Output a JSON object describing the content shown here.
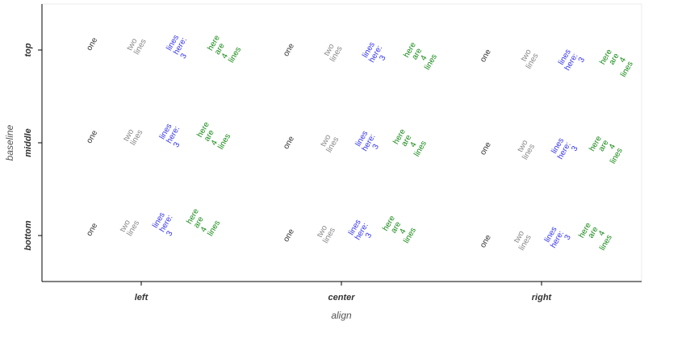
{
  "chart_data": {
    "type": "text-grid",
    "xlabel": "align",
    "ylabel": "baseline",
    "x_categories": [
      "left",
      "center",
      "right"
    ],
    "y_categories": [
      "top",
      "middle",
      "bottom"
    ],
    "text_rotation_deg": -60,
    "grid": false,
    "groups": [
      {
        "name": "one",
        "color": "#333333",
        "lines": [
          "one"
        ]
      },
      {
        "name": "two",
        "color": "#888888",
        "lines": [
          "two",
          "lines"
        ]
      },
      {
        "name": "three",
        "color": "#3333ee",
        "lines": [
          "lines",
          "here:",
          "3"
        ]
      },
      {
        "name": "four",
        "color": "#118811",
        "lines": [
          "here",
          "are",
          "4",
          "lines"
        ]
      }
    ]
  }
}
